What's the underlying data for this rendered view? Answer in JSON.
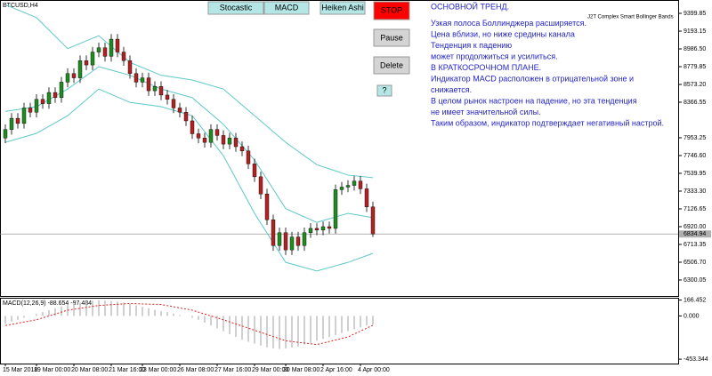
{
  "chart_data": {
    "type": "candlestick",
    "symbol": "BTCUSD,H4",
    "indicator": "J2T Complex Smart Bollinger Bands",
    "ylim": [
      6114,
      9555
    ],
    "yticks": [
      9399.85,
      9193.15,
      {
        "value": 8986.5,
        "label": "8986.50"
      },
      8779.85,
      {
        "value": 8573.2,
        "label": "8573.20"
      },
      8366.55,
      7953.25,
      {
        "value": 7746.6,
        "label": "7746.60"
      },
      7539.95,
      {
        "value": 7333.3,
        "label": "7333.30"
      },
      7126.65,
      {
        "value": 6920,
        "label": "6920.00"
      },
      6713.35,
      {
        "value": 6506.7,
        "label": "6506.70"
      },
      6300.05
    ],
    "current_price": 6834.94,
    "xticks": [
      {
        "value": 0,
        "label": "15 Mar 2018"
      },
      {
        "value": 5,
        "label": "19 Mar 00:00"
      },
      {
        "value": 11,
        "label": "20 Mar 08:00"
      },
      {
        "value": 17,
        "label": "21 Mar 16:00"
      },
      {
        "value": 22,
        "label": "23 Mar 00:00"
      },
      {
        "value": 28,
        "label": "26 Mar 08:00"
      },
      {
        "value": 34,
        "label": "27 Mar 16:00"
      },
      {
        "value": 40,
        "label": "29 Mar 00:00"
      },
      {
        "value": 45,
        "label": "30 Mar 08:00"
      },
      {
        "value": 51,
        "label": "2 Apr 16:00"
      },
      {
        "value": 57,
        "label": "4 Apr 00:00"
      }
    ],
    "candles": [
      [
        7950,
        8110,
        7890,
        8050
      ],
      [
        8050,
        8240,
        7990,
        8180
      ],
      [
        8180,
        8240,
        8060,
        8120
      ],
      [
        8120,
        8360,
        8060,
        8300
      ],
      [
        8300,
        8360,
        8190,
        8250
      ],
      [
        8250,
        8460,
        8190,
        8400
      ],
      [
        8400,
        8460,
        8290,
        8350
      ],
      [
        8350,
        8540,
        8290,
        8480
      ],
      [
        8480,
        8540,
        8360,
        8420
      ],
      [
        8420,
        8660,
        8360,
        8600
      ],
      [
        8600,
        8760,
        8540,
        8700
      ],
      [
        8700,
        8760,
        8590,
        8650
      ],
      [
        8650,
        8910,
        8590,
        8850
      ],
      [
        8850,
        8910,
        8740,
        8800
      ],
      [
        8800,
        9010,
        8740,
        8950
      ],
      [
        8950,
        9060,
        8890,
        9000
      ],
      [
        9000,
        9060,
        8840,
        8900
      ],
      [
        8900,
        9160,
        8840,
        9100
      ],
      [
        9100,
        9160,
        8890,
        8950
      ],
      [
        8950,
        9010,
        8790,
        8850
      ],
      [
        8850,
        8910,
        8640,
        8700
      ],
      [
        8700,
        8760,
        8540,
        8600
      ],
      [
        8600,
        8710,
        8540,
        8650
      ],
      [
        8650,
        8710,
        8440,
        8500
      ],
      [
        8500,
        8610,
        8440,
        8550
      ],
      [
        8550,
        8610,
        8390,
        8450
      ],
      [
        8450,
        8510,
        8340,
        8400
      ],
      [
        8400,
        8460,
        8240,
        8300
      ],
      [
        8300,
        8360,
        8190,
        8250
      ],
      [
        8250,
        8310,
        8090,
        8150
      ],
      [
        8150,
        8210,
        7940,
        8000
      ],
      [
        8000,
        8060,
        7890,
        7950
      ],
      [
        7950,
        8010,
        7840,
        7900
      ],
      [
        7900,
        8110,
        7840,
        8050
      ],
      [
        8050,
        8110,
        7920,
        7980
      ],
      [
        7980,
        8040,
        7820,
        7880
      ],
      [
        7880,
        8010,
        7820,
        7950
      ],
      [
        7950,
        8010,
        7790,
        7850
      ],
      [
        7850,
        7910,
        7740,
        7800
      ],
      [
        7800,
        7860,
        7590,
        7650
      ],
      [
        7650,
        7710,
        7440,
        7500
      ],
      [
        7500,
        7560,
        7240,
        7300
      ],
      [
        7300,
        7360,
        6940,
        7000
      ],
      [
        7000,
        7060,
        6640,
        6700
      ],
      [
        6700,
        6910,
        6640,
        6850
      ],
      [
        6850,
        6910,
        6590,
        6650
      ],
      [
        6650,
        6860,
        6590,
        6800
      ],
      [
        6800,
        6860,
        6640,
        6700
      ],
      [
        6700,
        6910,
        6640,
        6850
      ],
      [
        6850,
        6960,
        6790,
        6900
      ],
      [
        6900,
        6960,
        6820,
        6880
      ],
      [
        6880,
        6980,
        6820,
        6920
      ],
      [
        6920,
        6980,
        6840,
        6900
      ],
      [
        6900,
        7410,
        6840,
        7350
      ],
      [
        7350,
        7440,
        7290,
        7380
      ],
      [
        7380,
        7460,
        7320,
        7400
      ],
      [
        7400,
        7510,
        7340,
        7450
      ],
      [
        7450,
        7510,
        7300,
        7360
      ],
      [
        7360,
        7420,
        7090,
        7150
      ],
      [
        7150,
        7210,
        6800,
        6835
      ]
    ],
    "band_x": [
      0,
      5,
      10,
      15,
      20,
      25,
      30,
      35,
      40,
      45,
      50,
      55,
      59
    ],
    "bands": [
      {
        "name": "upper",
        "color": "#5fc8c8",
        "values": [
          9500,
          9350,
          8990,
          9140,
          8830,
          8680,
          8625,
          8520,
          8210,
          7900,
          7640,
          7520,
          7490
        ]
      },
      {
        "name": "middle",
        "color": "#5fc8c8",
        "values": [
          8260,
          8315,
          8520,
          8780,
          8680,
          8520,
          8420,
          8110,
          7695,
          7130,
          6970,
          7075,
          7025
        ]
      },
      {
        "name": "lower",
        "color": "#5fc8c8",
        "values": [
          7900,
          8005,
          8210,
          8520,
          8365,
          8315,
          8210,
          7745,
          7075,
          6505,
          6405,
          6505,
          6610
        ]
      }
    ],
    "macd": {
      "title": "MACD(12,26,9) -88.654 -97.484",
      "ylim": [
        -499,
        181
      ],
      "yticks": [
        166.452,
        {
          "value": 0,
          "label": "0.000"
        },
        -453.344
      ],
      "values": [
        -80,
        -60,
        -40,
        -20,
        0,
        20,
        40,
        60,
        80,
        100,
        115,
        130,
        140,
        150,
        160,
        165,
        160,
        155,
        150,
        140,
        125,
        110,
        95,
        80,
        65,
        50,
        40,
        25,
        10,
        0,
        -20,
        -40,
        -70,
        -100,
        -130,
        -160,
        -190,
        -220,
        -250,
        -270,
        -290,
        -310,
        -330,
        -340,
        -345,
        -340,
        -330,
        -320,
        -300,
        -280,
        -260,
        -240,
        -220,
        -200,
        -180,
        -160,
        -140,
        -120,
        -100,
        -88.654
      ],
      "signal": [
        -100,
        -40,
        60,
        110,
        130,
        120,
        60,
        -40,
        -150,
        -260,
        -300,
        -220,
        -97.484
      ],
      "signal_color": "#e02020"
    }
  },
  "buttons": {
    "stocastic": "Stocastic",
    "macd": "MACD",
    "heiken": "Heiken Ashi",
    "stop": "STOP",
    "pause": "Pause",
    "delete": "Delete",
    "help": "?"
  },
  "notes": [
    "ОСНОВНОЙ ТРЕНД.",
    "Узкая полоса Боллинджера расширяется.",
    "Цена вблизи, но ниже средины канала",
    "Тенденция к падению",
    "может продолжиться и усилиться.",
    "В КРАТКОСРОЧНОМ ПЛАНЕ.",
    "Индикатор MACD расположен в отрицательной зоне и",
    "снижается.",
    "В целом рынок настроен на падение, но эта тенденция",
    "не имеет значительной силы.",
    "Таким образом, индикатор подтверждает негативный настрой."
  ]
}
